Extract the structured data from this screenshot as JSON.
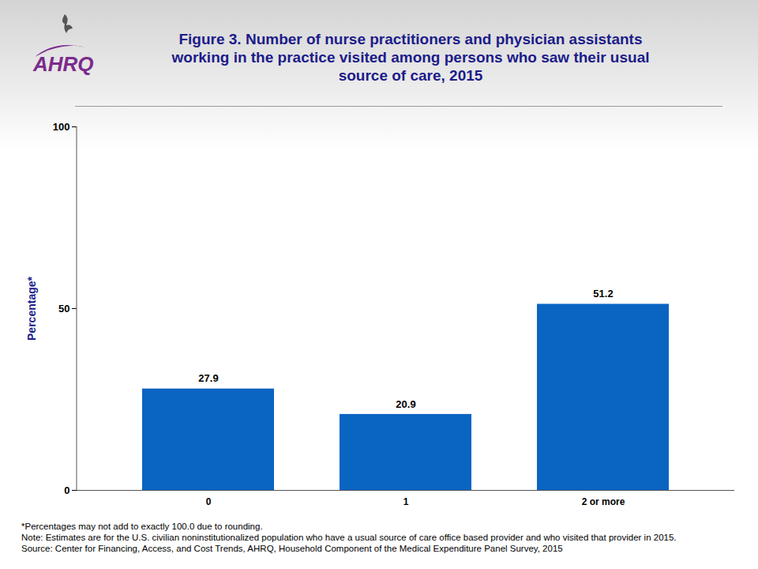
{
  "chart_data": {
    "type": "bar",
    "logo_text": "AHRQ",
    "title": "Figure 3. Number of nurse practitioners and physician assistants working in the practice visited among persons who saw their usual source of care, 2015",
    "categories": [
      "0",
      "1",
      "2 or more"
    ],
    "values": [
      27.9,
      20.9,
      51.2
    ],
    "color": "#0a64c2",
    "ylabel": "Percentage*",
    "ylim": [
      0,
      100
    ],
    "yticks": [
      0,
      50,
      100
    ],
    "data_labels": true,
    "grid": false,
    "notes": [
      "*Percentages may not add to exactly 100.0 due to rounding.",
      "Note: Estimates are for the U.S. civilian noninstitutionalized population who have a usual source of care office based provider and who visited that provider in 2015.",
      "Source: Center for Financing, Access, and Cost Trends, AHRQ, Household Component of the Medical Expenditure Panel Survey,  2015"
    ]
  }
}
